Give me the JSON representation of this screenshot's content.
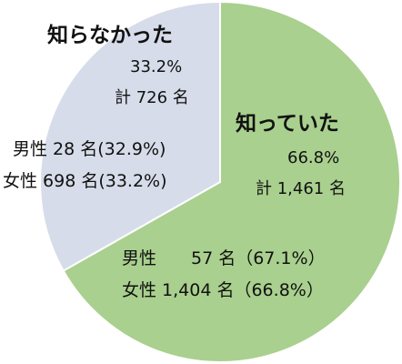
{
  "chart_data": {
    "type": "pie",
    "slices": [
      {
        "name": "知っていた",
        "value": 66.8,
        "color": "#a9d08e",
        "percent_label": "66.8%",
        "total_label": "計 1,461 名",
        "male_label": "男性　　57 名（67.1%）",
        "female_label": "女性 1,404 名（66.8%）"
      },
      {
        "name": "知らなかった",
        "value": 33.2,
        "color": "#d6dce9",
        "percent_label": "33.2%",
        "total_label": "計 726 名",
        "male_label": "男性 28 名(32.9%)",
        "female_label": "女性 698 名(33.2%)"
      }
    ],
    "start_angle_deg": 0,
    "direction": "clockwise",
    "edge_color": "#ffffff"
  }
}
